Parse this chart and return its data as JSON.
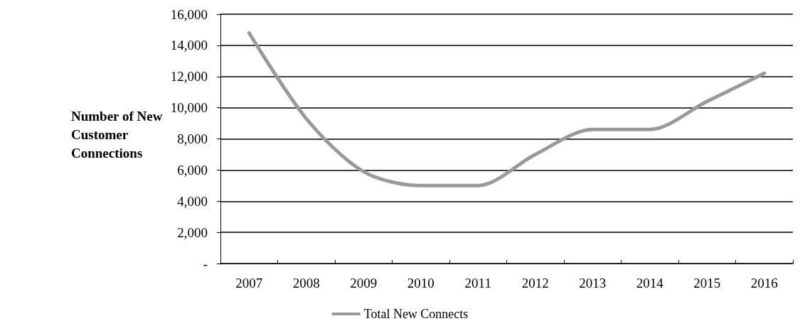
{
  "chart_data": {
    "type": "line",
    "ylabel": "Number of New Customer Connections",
    "categories": [
      "2007",
      "2008",
      "2009",
      "2010",
      "2011",
      "2012",
      "2013",
      "2014",
      "2015",
      "2016"
    ],
    "series": [
      {
        "name": "Total New Connects",
        "color": "#9a9a9a",
        "values": [
          14800,
          9300,
          5900,
          5000,
          5000,
          7000,
          8600,
          8600,
          10400,
          12200
        ]
      }
    ],
    "ylim": [
      0,
      16000
    ],
    "yticks": [
      {
        "value": 0,
        "label": "-"
      },
      {
        "value": 2000,
        "label": "2,000"
      },
      {
        "value": 4000,
        "label": "4,000"
      },
      {
        "value": 6000,
        "label": "6,000"
      },
      {
        "value": 8000,
        "label": "8,000"
      },
      {
        "value": 10000,
        "label": "10,000"
      },
      {
        "value": 12000,
        "label": "12,000"
      },
      {
        "value": 14000,
        "label": "14,000"
      },
      {
        "value": 16000,
        "label": "16,000"
      }
    ],
    "grid": "y",
    "legend": "bottom",
    "marker": "none",
    "line_style": "solid"
  }
}
